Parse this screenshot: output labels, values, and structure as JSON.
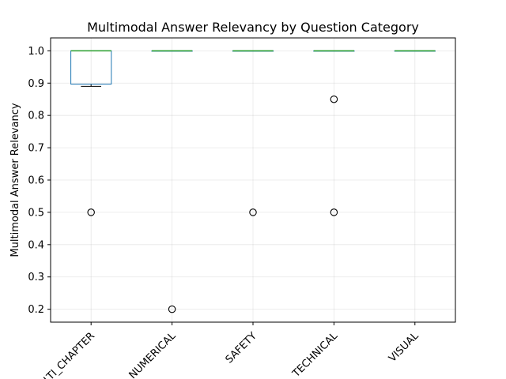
{
  "chart_data": {
    "type": "box",
    "title": "Multimodal Answer Relevancy by Question Category",
    "xlabel": "",
    "ylabel": "Multimodal Answer Relevancy",
    "ylim": [
      0.16,
      1.04
    ],
    "yticks": [
      "0.2",
      "0.3",
      "0.4",
      "0.5",
      "0.6",
      "0.7",
      "0.8",
      "0.9",
      "1.0"
    ],
    "grid": true,
    "categories": [
      "MULTI_CHAPTER",
      "NUMERICAL",
      "SAFETY",
      "TECHNICAL",
      "VISUAL"
    ],
    "boxes": [
      {
        "category": "MULTI_CHAPTER",
        "whisker_low": 0.89,
        "q1": 0.897,
        "median": 1.0,
        "q3": 1.0,
        "whisker_high": 1.0,
        "outliers": [
          0.5
        ]
      },
      {
        "category": "NUMERICAL",
        "whisker_low": 1.0,
        "q1": 1.0,
        "median": 1.0,
        "q3": 1.0,
        "whisker_high": 1.0,
        "outliers": [
          0.2
        ]
      },
      {
        "category": "SAFETY",
        "whisker_low": 1.0,
        "q1": 1.0,
        "median": 1.0,
        "q3": 1.0,
        "whisker_high": 1.0,
        "outliers": [
          0.5
        ]
      },
      {
        "category": "TECHNICAL",
        "whisker_low": 1.0,
        "q1": 1.0,
        "median": 1.0,
        "q3": 1.0,
        "whisker_high": 1.0,
        "outliers": [
          0.85,
          0.5
        ]
      },
      {
        "category": "VISUAL",
        "whisker_low": 1.0,
        "q1": 1.0,
        "median": 1.0,
        "q3": 1.0,
        "whisker_high": 1.0,
        "outliers": []
      }
    ],
    "colors": {
      "box": "#1f77b4",
      "median": "#2ca02c",
      "whisker": "#000000",
      "grid": "#b0b0b0",
      "outlier_edge": "#000000"
    }
  }
}
